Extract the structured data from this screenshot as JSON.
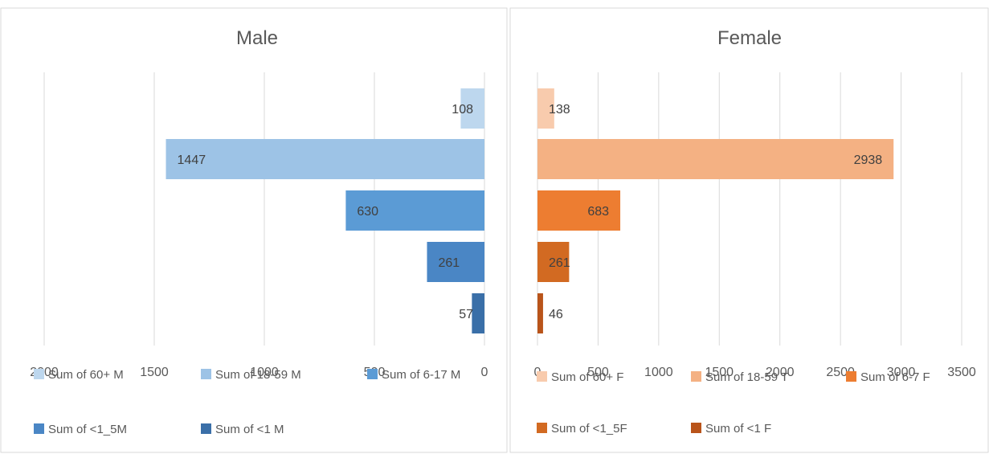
{
  "chart_data": [
    {
      "type": "bar",
      "orientation": "horizontal",
      "title": "Male",
      "direction": "reversed",
      "xlim": [
        0,
        2000
      ],
      "x_ticks": [
        "2000",
        "1500",
        "1000",
        "500",
        "0"
      ],
      "grid": true,
      "legend_position": "bottom",
      "series": [
        {
          "name": "Sum of 60+ M",
          "value": 108,
          "label": "108",
          "color": "#bdd7ee"
        },
        {
          "name": "Sum of 18-59 M",
          "value": 1447,
          "label": "1447",
          "color": "#9dc3e6"
        },
        {
          "name": "Sum of 6-17 M",
          "value": 630,
          "label": "630",
          "color": "#5b9bd5"
        },
        {
          "name": "Sum of <1_5M",
          "value": 261,
          "label": "261",
          "color": "#4a86c5"
        },
        {
          "name": "Sum of <1 M",
          "value": 57,
          "label": "57",
          "color": "#3a6fa8"
        }
      ]
    },
    {
      "type": "bar",
      "orientation": "horizontal",
      "title": "Female",
      "direction": "normal",
      "xlim": [
        0,
        3500
      ],
      "x_ticks": [
        "0",
        "500",
        "1000",
        "1500",
        "2000",
        "2500",
        "3000",
        "3500"
      ],
      "grid": true,
      "legend_position": "bottom",
      "series": [
        {
          "name": "Sum of 60+ F",
          "value": 138,
          "label": "138",
          "color": "#f8cbad"
        },
        {
          "name": "Sum of 18-59 T",
          "value": 2938,
          "label": "2938",
          "color": "#f4b183"
        },
        {
          "name": "Sum of 6-7 F",
          "value": 683,
          "label": "683",
          "color": "#ed7d31"
        },
        {
          "name": "Sum of <1_5F",
          "value": 261,
          "label": "261",
          "color": "#d26a22"
        },
        {
          "name": "Sum of <1 F",
          "value": 46,
          "label": "46",
          "color": "#b9541a"
        }
      ]
    }
  ]
}
